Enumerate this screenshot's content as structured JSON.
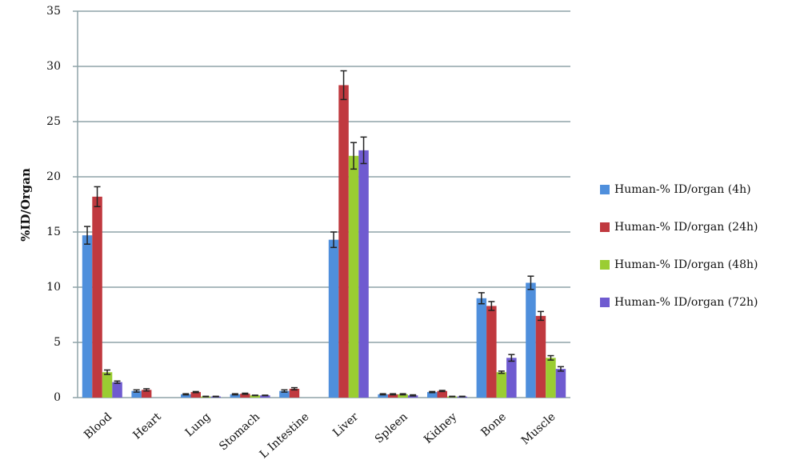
{
  "chart_data": {
    "type": "bar",
    "y_label": "%ID/Organ",
    "categories": [
      "Blood",
      "Heart",
      "Lung",
      "Stomach",
      "L Intestine",
      "Liver",
      "Spleen",
      "Kidney",
      "Bone",
      "Muscle"
    ],
    "series": [
      {
        "name": "Human-% ID/organ (4h)",
        "color": "#4f8fdc",
        "values": [
          14.7,
          0.6,
          0.3,
          0.3,
          0.6,
          14.3,
          0.3,
          0.5,
          9.0,
          10.4
        ],
        "errors": [
          0.8,
          0.1,
          0.05,
          0.05,
          0.1,
          0.7,
          0.05,
          0.05,
          0.5,
          0.6
        ]
      },
      {
        "name": "Human-% ID/organ (24h)",
        "color": "#c0393f",
        "values": [
          18.2,
          0.7,
          0.5,
          0.35,
          0.8,
          28.3,
          0.3,
          0.6,
          8.3,
          7.4
        ],
        "errors": [
          0.9,
          0.1,
          0.05,
          0.05,
          0.1,
          1.3,
          0.05,
          0.05,
          0.4,
          0.4
        ]
      },
      {
        "name": "Human-% ID/organ (48h)",
        "color": "#9acd32",
        "values": [
          2.3,
          0,
          0.1,
          0.2,
          0,
          21.9,
          0.3,
          0.1,
          2.3,
          3.6
        ],
        "errors": [
          0.2,
          0,
          0.02,
          0.02,
          0,
          1.2,
          0.05,
          0.02,
          0.1,
          0.2
        ]
      },
      {
        "name": "Human-% ID/organ (72h)",
        "color": "#6f5bd0",
        "values": [
          1.4,
          0,
          0.1,
          0.2,
          0,
          22.4,
          0.2,
          0.1,
          3.6,
          2.6
        ],
        "errors": [
          0.1,
          0,
          0.02,
          0.02,
          0,
          1.2,
          0.05,
          0.02,
          0.3,
          0.2
        ]
      }
    ],
    "ylim": [
      0,
      35
    ],
    "yticks": [
      0,
      5,
      10,
      15,
      20,
      25,
      30,
      35
    ],
    "grid": true,
    "legend": "right"
  }
}
